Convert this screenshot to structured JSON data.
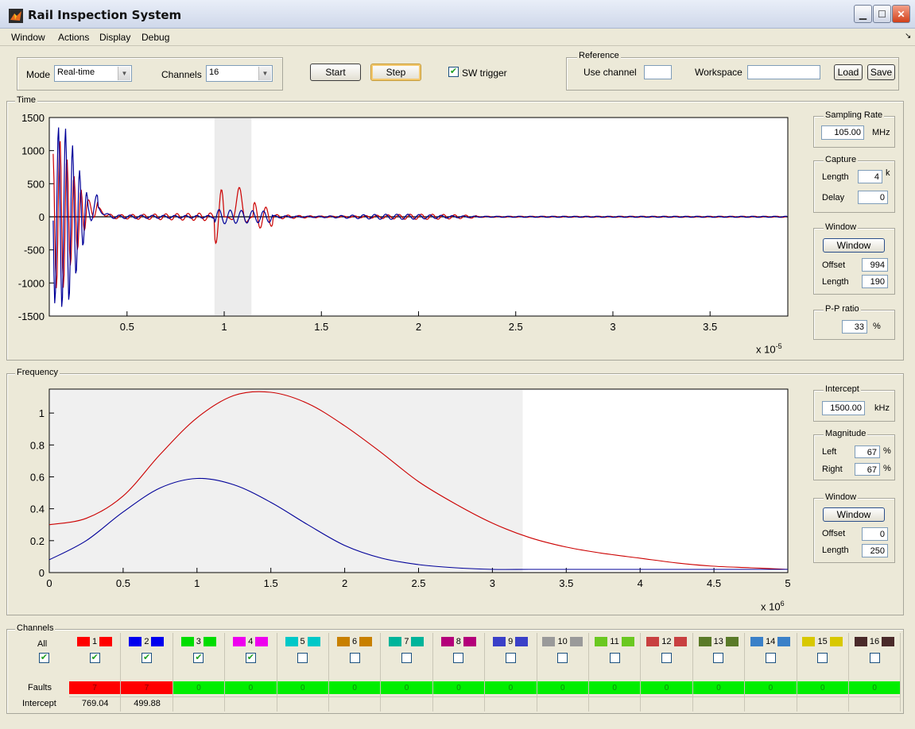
{
  "window": {
    "title": "Rail Inspection System"
  },
  "menu": [
    "Window",
    "Actions",
    "Display",
    "Debug"
  ],
  "toolbar": {
    "mode_label": "Mode",
    "mode_value": "Real-time",
    "channels_label": "Channels",
    "channels_value": "16",
    "start_label": "Start",
    "step_label": "Step",
    "sw_trigger_label": "SW trigger",
    "sw_trigger_checked": true
  },
  "reference": {
    "title": "Reference",
    "use_channel_label": "Use channel",
    "use_channel_value": "",
    "workspace_label": "Workspace",
    "workspace_value": "",
    "load_label": "Load",
    "save_label": "Save"
  },
  "time_panel": {
    "title": "Time",
    "exponent_label": "x 10",
    "exponent_power": "-5",
    "sampling": {
      "title": "Sampling Rate",
      "value": "105.00",
      "unit": "MHz"
    },
    "capture": {
      "title": "Capture",
      "length_label": "Length",
      "length_value": "4",
      "length_unit": "k",
      "delay_label": "Delay",
      "delay_value": "0"
    },
    "window": {
      "title": "Window",
      "button": "Window",
      "offset_label": "Offset",
      "offset_value": "994",
      "length_label": "Length",
      "length_value": "190"
    },
    "ppratio": {
      "title": "P-P ratio",
      "value": "33",
      "unit": "%"
    }
  },
  "freq_panel": {
    "title": "Frequency",
    "exponent_label": "x 10",
    "exponent_power": "6",
    "intercept": {
      "title": "Intercept",
      "value": "1500.00",
      "unit": "kHz"
    },
    "magnitude": {
      "title": "Magnitude",
      "left_label": "Left",
      "left_value": "67",
      "right_label": "Right",
      "right_value": "67",
      "unit": "%"
    },
    "window": {
      "title": "Window",
      "button": "Window",
      "offset_label": "Offset",
      "offset_value": "0",
      "length_label": "Length",
      "length_value": "250"
    }
  },
  "channels_panel": {
    "title": "Channels",
    "all_label": "All",
    "faults_label": "Faults",
    "intercept_label": "Intercept",
    "channels": [
      {
        "num": "1",
        "color": "#ff0000",
        "checked": true,
        "faults": "7",
        "fault_color": "#ff0000",
        "intercept": "769.04"
      },
      {
        "num": "2",
        "color": "#0000ee",
        "checked": true,
        "faults": "7",
        "fault_color": "#ff0000",
        "intercept": "499.88"
      },
      {
        "num": "3",
        "color": "#00dd00",
        "checked": true,
        "faults": "0",
        "fault_color": "#00ee00",
        "intercept": ""
      },
      {
        "num": "4",
        "color": "#ee00ee",
        "checked": true,
        "faults": "0",
        "fault_color": "#00ee00",
        "intercept": ""
      },
      {
        "num": "5",
        "color": "#00c8c8",
        "checked": false,
        "faults": "0",
        "fault_color": "#00ee00",
        "intercept": ""
      },
      {
        "num": "6",
        "color": "#c88000",
        "checked": false,
        "faults": "0",
        "fault_color": "#00ee00",
        "intercept": ""
      },
      {
        "num": "7",
        "color": "#00b49a",
        "checked": false,
        "faults": "0",
        "fault_color": "#00ee00",
        "intercept": ""
      },
      {
        "num": "8",
        "color": "#b4007a",
        "checked": false,
        "faults": "0",
        "fault_color": "#00ee00",
        "intercept": ""
      },
      {
        "num": "9",
        "color": "#3a40c8",
        "checked": false,
        "faults": "0",
        "fault_color": "#00ee00",
        "intercept": ""
      },
      {
        "num": "10",
        "color": "#9a9a9a",
        "checked": false,
        "faults": "0",
        "fault_color": "#00ee00",
        "intercept": ""
      },
      {
        "num": "11",
        "color": "#6ac820",
        "checked": false,
        "faults": "0",
        "fault_color": "#00ee00",
        "intercept": ""
      },
      {
        "num": "12",
        "color": "#c84040",
        "checked": false,
        "faults": "0",
        "fault_color": "#00ee00",
        "intercept": ""
      },
      {
        "num": "13",
        "color": "#5a7a28",
        "checked": false,
        "faults": "0",
        "fault_color": "#00ee00",
        "intercept": ""
      },
      {
        "num": "14",
        "color": "#3a80c8",
        "checked": false,
        "faults": "0",
        "fault_color": "#00ee00",
        "intercept": ""
      },
      {
        "num": "15",
        "color": "#d8c800",
        "checked": false,
        "faults": "0",
        "fault_color": "#00ee00",
        "intercept": ""
      },
      {
        "num": "16",
        "color": "#4a2a2a",
        "checked": false,
        "faults": "0",
        "fault_color": "#00ee00",
        "intercept": ""
      }
    ]
  },
  "chart_data": [
    {
      "type": "line",
      "xlim": [
        0.1,
        3.9
      ],
      "ylim": [
        -1500,
        1500
      ],
      "x_ticks": [
        "0.5",
        "1",
        "1.5",
        "2",
        "2.5",
        "3",
        "3.5"
      ],
      "y_ticks": [
        "1500",
        "1000",
        "500",
        "0",
        "-500",
        "-1000",
        "-1500"
      ],
      "window_span": [
        0.95,
        1.14
      ],
      "series": [
        {
          "color": "#cc0000",
          "peak_points": [
            [
              0.12,
              -1000
            ],
            [
              0.16,
              1200
            ],
            [
              0.2,
              800
            ],
            [
              0.3,
              150
            ],
            [
              1.08,
              450
            ],
            [
              1.1,
              -300
            ],
            [
              1.2,
              -150
            ],
            [
              2.0,
              30
            ],
            [
              3.9,
              0
            ]
          ]
        },
        {
          "color": "#000099",
          "peak_points": [
            [
              0.12,
              -1300
            ],
            [
              0.16,
              1400
            ],
            [
              0.2,
              -1300
            ],
            [
              0.3,
              200
            ],
            [
              1.05,
              -100
            ],
            [
              2.0,
              30
            ],
            [
              3.9,
              0
            ]
          ]
        }
      ]
    },
    {
      "type": "line",
      "xlim": [
        0,
        5
      ],
      "ylim": [
        0,
        1.15
      ],
      "x_ticks": [
        "0",
        "0.5",
        "1",
        "1.5",
        "2",
        "2.5",
        "3",
        "3.5",
        "4",
        "4.5",
        "5"
      ],
      "y_ticks": [
        "1",
        "0.8",
        "0.6",
        "0.4",
        "0.2",
        "0"
      ],
      "window_span": [
        0,
        3.2
      ],
      "series": [
        {
          "color": "#cc0000",
          "x": [
            0,
            0.25,
            0.5,
            0.75,
            1.0,
            1.25,
            1.5,
            1.75,
            2.0,
            2.25,
            2.5,
            2.75,
            3.0,
            3.25,
            3.5,
            3.75,
            4.0,
            4.25,
            4.5,
            4.75,
            5.0
          ],
          "y": [
            0.3,
            0.34,
            0.48,
            0.74,
            0.97,
            1.11,
            1.13,
            1.06,
            0.92,
            0.75,
            0.57,
            0.43,
            0.31,
            0.22,
            0.16,
            0.12,
            0.09,
            0.06,
            0.04,
            0.03,
            0.02
          ]
        },
        {
          "color": "#000099",
          "x": [
            0,
            0.25,
            0.5,
            0.75,
            1.0,
            1.25,
            1.5,
            1.75,
            2.0,
            2.25,
            2.5,
            2.75,
            3.0,
            3.25,
            3.5,
            3.75,
            4.0,
            4.25,
            4.5,
            4.75,
            5.0
          ],
          "y": [
            0.08,
            0.2,
            0.38,
            0.53,
            0.59,
            0.55,
            0.44,
            0.3,
            0.17,
            0.09,
            0.05,
            0.03,
            0.02,
            0.02,
            0.02,
            0.02,
            0.02,
            0.02,
            0.02,
            0.02,
            0.02
          ]
        }
      ]
    }
  ]
}
